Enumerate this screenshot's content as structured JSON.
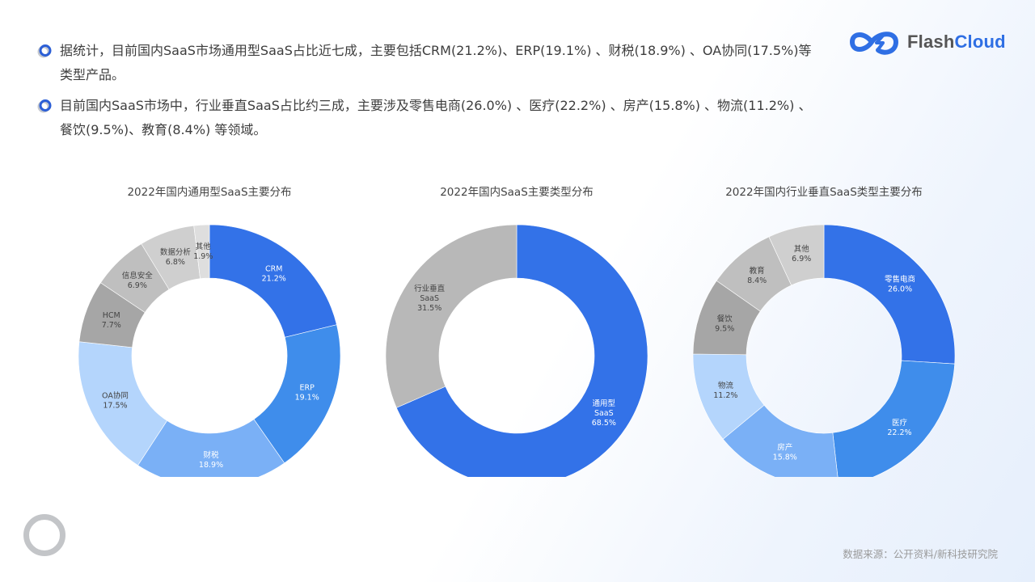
{
  "header": {
    "bullets": [
      {
        "icon": "ring-bullet-icon",
        "text": "据统计，目前国内SaaS市场通用型SaaS占比近七成，主要包括CRM(21.2%)、ERP(19.1%) 、财税(18.9%) 、OA协同(17.5%)等类型产品。"
      },
      {
        "icon": "ring-bullet-icon",
        "text": "目前国内SaaS市场中，行业垂直SaaS占比约三成，主要涉及零售电商(26.0%) 、医疗(22.2%) 、房产(15.8%) 、物流(11.2%) 、餐饮(9.5%)、教育(8.4%) 等领域。"
      }
    ]
  },
  "logo": {
    "part1": "Flash",
    "part2": "Cloud",
    "icon": "cloud-lightning-logo-icon"
  },
  "footer": {
    "source": "数据来源：公开资料/新科技研究院"
  },
  "colors": {
    "blue_dark": "#3372e8",
    "blue_mid": "#3f8deb",
    "blue_light": "#7ab0f6",
    "blue_pale": "#b4d5fc",
    "gray_dark": "#a6a6a6",
    "gray_mid": "#bfbfbf",
    "gray_light": "#cfcfcf",
    "gray_pale": "#dedede"
  },
  "chart_data": [
    {
      "type": "pie",
      "title": "2022年国内通用型SaaS主要分布",
      "donut": true,
      "categories": [
        "CRM",
        "ERP",
        "财税",
        "OA协同",
        "HCM",
        "信息安全",
        "数据分析",
        "其他"
      ],
      "values": [
        21.2,
        19.1,
        18.9,
        17.5,
        7.7,
        6.9,
        6.8,
        1.9
      ],
      "labels": [
        "21.2%",
        "19.1%",
        "18.9%",
        "17.5%",
        "7.7%",
        "6.9%",
        "6.8%",
        "1.9%"
      ],
      "colors": [
        "#3372e8",
        "#3f8deb",
        "#7ab0f6",
        "#b4d5fc",
        "#a6a6a6",
        "#bfbfbf",
        "#cfcfcf",
        "#dedede"
      ]
    },
    {
      "type": "pie",
      "title": "2022年国内SaaS主要类型分布",
      "donut": true,
      "categories": [
        "通用型SaaS",
        "行业垂直SaaS"
      ],
      "values": [
        68.5,
        31.5
      ],
      "labels": [
        "68.5%",
        "31.5%"
      ],
      "colors": [
        "#3372e8",
        "#b8b8b8"
      ]
    },
    {
      "type": "pie",
      "title": "2022年国内行业垂直SaaS类型主要分布",
      "donut": true,
      "categories": [
        "零售电商",
        "医疗",
        "房产",
        "物流",
        "餐饮",
        "教育",
        "其他"
      ],
      "values": [
        26.0,
        22.2,
        15.8,
        11.2,
        9.5,
        8.4,
        6.9
      ],
      "labels": [
        "26.0%",
        "22.2%",
        "15.8%",
        "11.2%",
        "9.5%",
        "8.4%",
        "6.9%"
      ],
      "colors": [
        "#3372e8",
        "#3f8deb",
        "#7ab0f6",
        "#b4d5fc",
        "#a6a6a6",
        "#bfbfbf",
        "#cfcfcf"
      ]
    }
  ]
}
